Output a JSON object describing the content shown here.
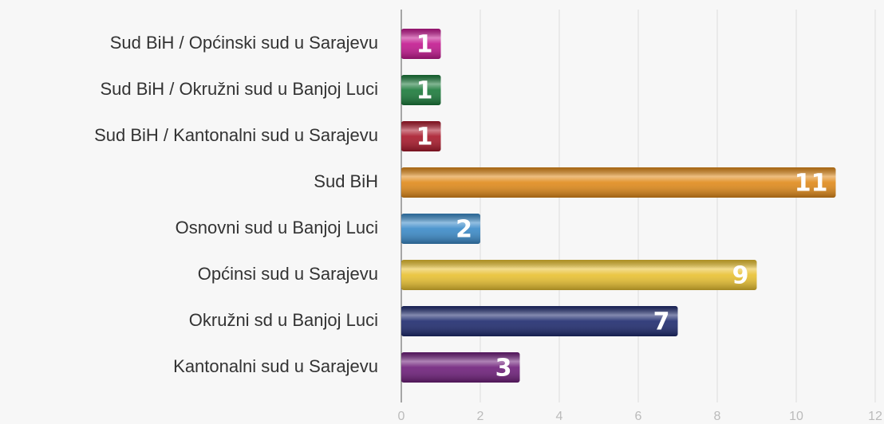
{
  "chart_data": {
    "type": "hbar",
    "categories": [
      "Sud BiH / Općinski sud u Sarajevu",
      "Sud BiH / Okružni sud u Banjoj Luci",
      "Sud BiH / Kantonalni sud u Sarajevu",
      "Sud BiH",
      "Osnovni sud u Banjoj Luci",
      "Općinsi sud u Sarajevu",
      "Okružni sd u Banjoj Luci",
      "Kantonalni sud u Sarajevu"
    ],
    "values": [
      1,
      1,
      1,
      11,
      2,
      9,
      7,
      3
    ],
    "colors": [
      "#c2188f",
      "#1a7a3a",
      "#a8182a",
      "#e08a1a",
      "#3a8ac8",
      "#e8c030",
      "#1e2a6e",
      "#6e1e7a"
    ],
    "xlim": [
      0,
      12
    ],
    "xticks": [
      0,
      2,
      4,
      6,
      8,
      10,
      12
    ],
    "grid": true
  }
}
